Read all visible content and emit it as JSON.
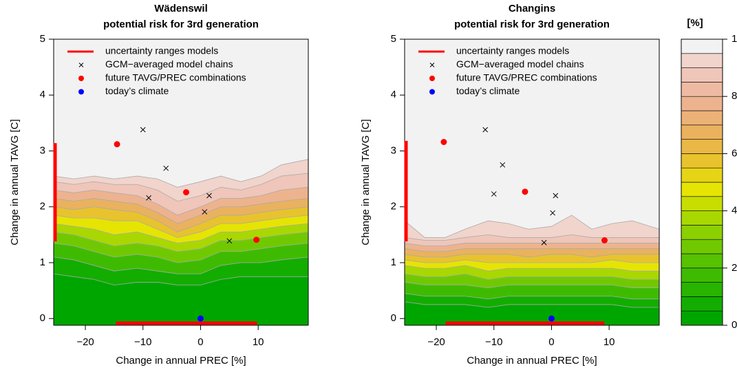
{
  "chart_data": [
    {
      "type": "contour",
      "title": "Wädenswil",
      "subtitle": "potential risk for 3rd generation",
      "x_label": "Change in annual PREC [%]",
      "y_label": "Change in annual TAVG [C]",
      "xlim": [
        -25.5,
        18.7
      ],
      "ylim": [
        -0.12,
        5
      ],
      "xticks": [
        {
          "value": -20,
          "label": "−20"
        },
        {
          "value": -10,
          "label": "−10"
        },
        0,
        10
      ],
      "yticks": [
        0,
        1,
        2,
        3,
        4,
        5
      ],
      "contour": {
        "x": [
          -25.5,
          -22,
          -18.5,
          -15,
          -11,
          -7.5,
          -4,
          0,
          3.5,
          7,
          10.5,
          14,
          18.7
        ],
        "levels": [
          5,
          10,
          20,
          30,
          40,
          50,
          60,
          70,
          80,
          90,
          95
        ],
        "y": [
          [
            0.8,
            0.75,
            0.7,
            0.6,
            0.65,
            0.65,
            0.6,
            0.6,
            0.7,
            0.75,
            0.75,
            0.75,
            0.75
          ],
          [
            1.1,
            1.05,
            0.95,
            0.85,
            0.9,
            0.85,
            0.8,
            0.8,
            0.95,
            1.0,
            1.0,
            1.05,
            1.1
          ],
          [
            1.35,
            1.3,
            1.2,
            1.1,
            1.15,
            1.1,
            1.0,
            1.05,
            1.2,
            1.2,
            1.25,
            1.3,
            1.35
          ],
          [
            1.55,
            1.5,
            1.4,
            1.3,
            1.35,
            1.3,
            1.2,
            1.25,
            1.4,
            1.4,
            1.45,
            1.5,
            1.55
          ],
          [
            1.7,
            1.65,
            1.6,
            1.5,
            1.55,
            1.45,
            1.35,
            1.4,
            1.55,
            1.55,
            1.6,
            1.65,
            1.7
          ],
          [
            1.85,
            1.8,
            1.8,
            1.75,
            1.75,
            1.6,
            1.45,
            1.55,
            1.7,
            1.7,
            1.75,
            1.8,
            1.85
          ],
          [
            2.0,
            1.95,
            2.0,
            1.95,
            1.9,
            1.75,
            1.55,
            1.7,
            1.85,
            1.85,
            1.9,
            1.95,
            2.0
          ],
          [
            2.15,
            2.1,
            2.15,
            2.1,
            2.05,
            1.9,
            1.7,
            1.85,
            2.0,
            2.0,
            2.05,
            2.1,
            2.15
          ],
          [
            2.3,
            2.25,
            2.3,
            2.25,
            2.2,
            2.05,
            1.85,
            2.0,
            2.15,
            2.15,
            2.2,
            2.3,
            2.35
          ],
          [
            2.45,
            2.4,
            2.45,
            2.4,
            2.4,
            2.3,
            2.1,
            2.2,
            2.35,
            2.3,
            2.4,
            2.55,
            2.6
          ],
          [
            2.55,
            2.5,
            2.55,
            2.5,
            2.55,
            2.5,
            2.35,
            2.45,
            2.55,
            2.45,
            2.55,
            2.75,
            2.85
          ]
        ]
      },
      "series": [
        {
          "name": "uncertainty ranges models",
          "color": "#ff0000",
          "marker": "range",
          "x": [
            -14.7,
            9.8
          ],
          "y": [
            1.38,
            3.14
          ]
        },
        {
          "name": "GCM−averaged model chains",
          "color": "#000000",
          "marker": "x",
          "x": [
            -10,
            -6,
            -9,
            1.5,
            0.7,
            5
          ],
          "y": [
            3.38,
            2.69,
            2.16,
            2.2,
            1.91,
            1.39
          ]
        },
        {
          "name": "future TAVG/PREC combinations",
          "color": "#ff0000",
          "marker": "dot",
          "x": [
            -14.5,
            -2.5,
            9.7
          ],
          "y": [
            3.12,
            2.26,
            1.41
          ]
        },
        {
          "name": "today’s climate",
          "color": "#0000ff",
          "marker": "dot",
          "x": [
            0
          ],
          "y": [
            0
          ]
        }
      ]
    },
    {
      "type": "contour",
      "title": "Changins",
      "subtitle": "potential risk for 3rd generation",
      "x_label": "Change in annual PREC [%]",
      "y_label": "Change in annual TAVG [C]",
      "xlim": [
        -25.5,
        18.7
      ],
      "ylim": [
        -0.12,
        5
      ],
      "xticks": [
        {
          "value": -20,
          "label": "−20"
        },
        {
          "value": -10,
          "label": "−10"
        },
        0,
        10
      ],
      "yticks": [
        0,
        1,
        2,
        3,
        4,
        5
      ],
      "contour": {
        "x": [
          -25.5,
          -22,
          -18.5,
          -15,
          -11,
          -7.5,
          -4,
          0,
          3.5,
          7,
          10.5,
          14,
          18.7
        ],
        "levels": [
          5,
          10,
          20,
          30,
          40,
          50,
          60,
          70,
          80,
          90,
          95
        ],
        "y": [
          [
            0.3,
            0.25,
            0.25,
            0.25,
            0.2,
            0.25,
            0.25,
            0.25,
            0.25,
            0.25,
            0.25,
            0.2,
            0.2
          ],
          [
            0.45,
            0.4,
            0.4,
            0.4,
            0.35,
            0.4,
            0.4,
            0.4,
            0.4,
            0.4,
            0.4,
            0.35,
            0.35
          ],
          [
            0.65,
            0.6,
            0.6,
            0.6,
            0.55,
            0.6,
            0.6,
            0.6,
            0.6,
            0.6,
            0.6,
            0.55,
            0.55
          ],
          [
            0.8,
            0.75,
            0.75,
            0.8,
            0.7,
            0.75,
            0.75,
            0.75,
            0.75,
            0.75,
            0.75,
            0.7,
            0.7
          ],
          [
            0.95,
            0.9,
            0.9,
            0.95,
            0.85,
            0.9,
            0.9,
            0.9,
            0.9,
            0.9,
            0.9,
            0.85,
            0.85
          ],
          [
            1.05,
            1.0,
            1.0,
            1.05,
            1.0,
            1.0,
            1.0,
            1.0,
            1.0,
            1.0,
            1.05,
            1.0,
            1.0
          ],
          [
            1.15,
            1.1,
            1.1,
            1.15,
            1.15,
            1.15,
            1.1,
            1.15,
            1.15,
            1.1,
            1.15,
            1.15,
            1.15
          ],
          [
            1.25,
            1.2,
            1.2,
            1.25,
            1.25,
            1.25,
            1.25,
            1.25,
            1.25,
            1.25,
            1.25,
            1.25,
            1.25
          ],
          [
            1.35,
            1.3,
            1.3,
            1.35,
            1.35,
            1.35,
            1.35,
            1.35,
            1.35,
            1.35,
            1.35,
            1.35,
            1.35
          ],
          [
            1.45,
            1.4,
            1.4,
            1.45,
            1.5,
            1.45,
            1.45,
            1.45,
            1.5,
            1.45,
            1.45,
            1.45,
            1.45
          ],
          [
            1.75,
            1.45,
            1.45,
            1.6,
            1.75,
            1.7,
            1.6,
            1.65,
            1.85,
            1.6,
            1.7,
            1.75,
            1.6
          ]
        ]
      },
      "series": [
        {
          "name": "uncertainty ranges models",
          "color": "#ff0000",
          "marker": "range",
          "x": [
            -18.4,
            9.2
          ],
          "y": [
            1.38,
            3.18
          ]
        },
        {
          "name": "GCM−averaged model chains",
          "color": "#000000",
          "marker": "x",
          "x": [
            -11.5,
            -8.5,
            -10,
            0.7,
            0.2,
            -1.3
          ],
          "y": [
            3.38,
            2.75,
            2.23,
            2.2,
            1.89,
            1.36
          ]
        },
        {
          "name": "future TAVG/PREC combinations",
          "color": "#ff0000",
          "marker": "dot",
          "x": [
            -18.7,
            -4.6,
            9.2
          ],
          "y": [
            3.16,
            2.27,
            1.4
          ]
        },
        {
          "name": "today’s climate",
          "color": "#0000ff",
          "marker": "dot",
          "x": [
            0
          ],
          "y": [
            0
          ]
        }
      ]
    }
  ],
  "colorbar": {
    "title": "[%]",
    "lim": [
      0,
      100
    ],
    "ticks": [
      0,
      20,
      40,
      60,
      80,
      100
    ],
    "colors": [
      "#00A600",
      "#13AD00",
      "#28B400",
      "#3EBB00",
      "#56C200",
      "#70C900",
      "#8BD000",
      "#A9D700",
      "#C8DE00",
      "#E6E402",
      "#E6D416",
      "#E8C32E",
      "#E9B846",
      "#EAB25E",
      "#ECB176",
      "#EDB38E",
      "#EEBAA4",
      "#EFC6B9",
      "#F1D4CC",
      "#F2F2F2"
    ]
  }
}
